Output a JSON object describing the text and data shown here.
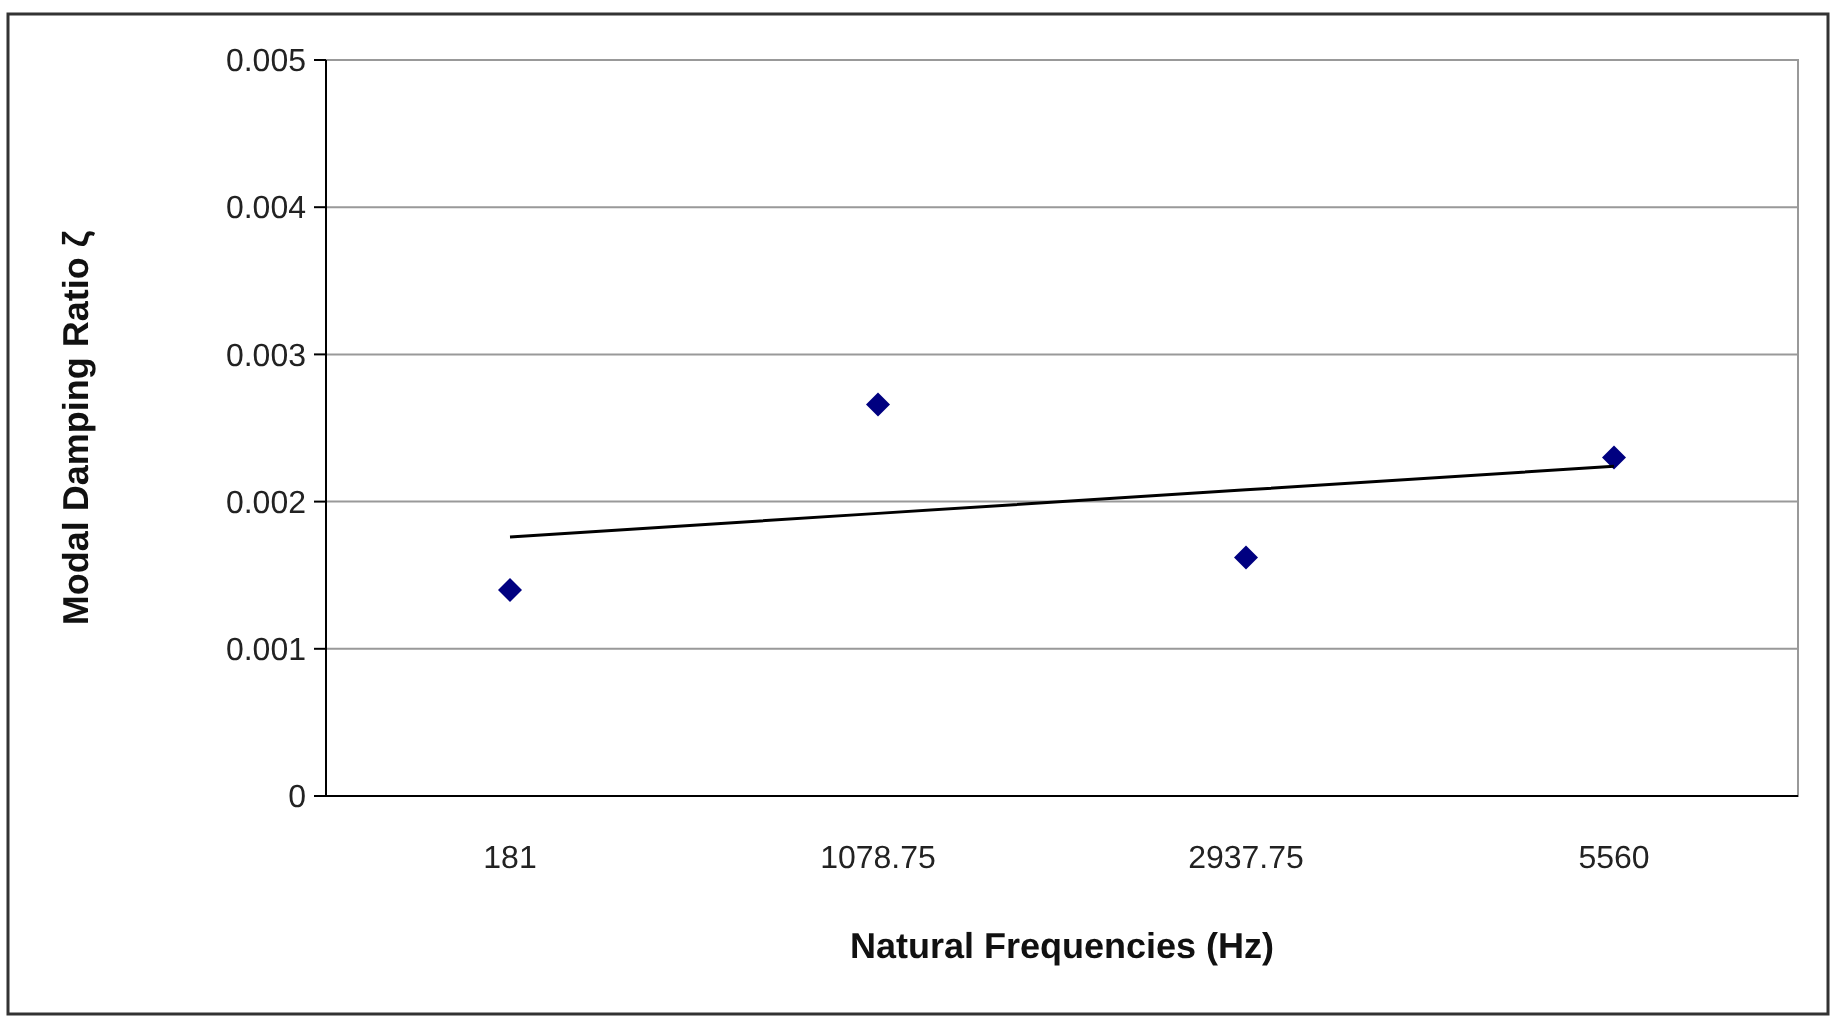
{
  "chart_data": {
    "type": "scatter",
    "xlabel": "Natural Frequencies (Hz)",
    "ylabel": "Modal Damping Ratio ζ",
    "categories": [
      "181",
      "1078.75",
      "2937.75",
      "5560"
    ],
    "series": [
      {
        "color": "#000080",
        "marker": "diamond",
        "values": [
          0.0014,
          0.00266,
          0.00162,
          0.0023
        ]
      },
      {
        "type": "line",
        "color": "#000000",
        "values": [
          0.00176,
          0.00192,
          0.00208,
          0.00224
        ],
        "marker": "none",
        "line_style": "solid"
      }
    ],
    "ylim": [
      0,
      0.005
    ],
    "yticks": [
      0,
      0.001,
      0.002,
      0.003,
      0.004,
      0.005
    ],
    "grid": "y"
  }
}
